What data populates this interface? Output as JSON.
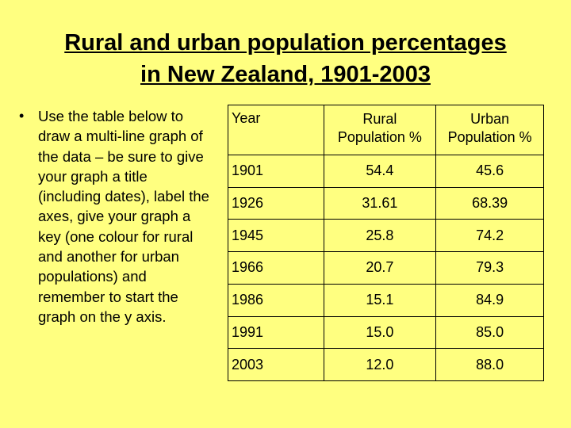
{
  "slide": {
    "title_line1": "Rural and urban population percentages",
    "title_line2": "in New Zealand, 1901-2003",
    "bullet_marker": "•",
    "bullet_text": "Use the table below to draw a multi-line graph of the data – be sure to give your graph a title (including dates), label the axes, give your graph a key (one colour for rural and another for urban populations) and remember to start the graph on the y axis."
  },
  "table": {
    "headers": [
      "Year",
      "Rural Population %",
      "Urban Population %"
    ],
    "rows": [
      [
        "1901",
        "54.4",
        "45.6"
      ],
      [
        "1926",
        "31.61",
        "68.39"
      ],
      [
        "1945",
        "25.8",
        "74.2"
      ],
      [
        "1966",
        "20.7",
        "79.3"
      ],
      [
        "1986",
        "15.1",
        "84.9"
      ],
      [
        "1991",
        "15.0",
        "85.0"
      ],
      [
        "2003",
        "12.0",
        "88.0"
      ]
    ]
  },
  "colors": {
    "background": "#ffff80",
    "text": "#000000"
  }
}
